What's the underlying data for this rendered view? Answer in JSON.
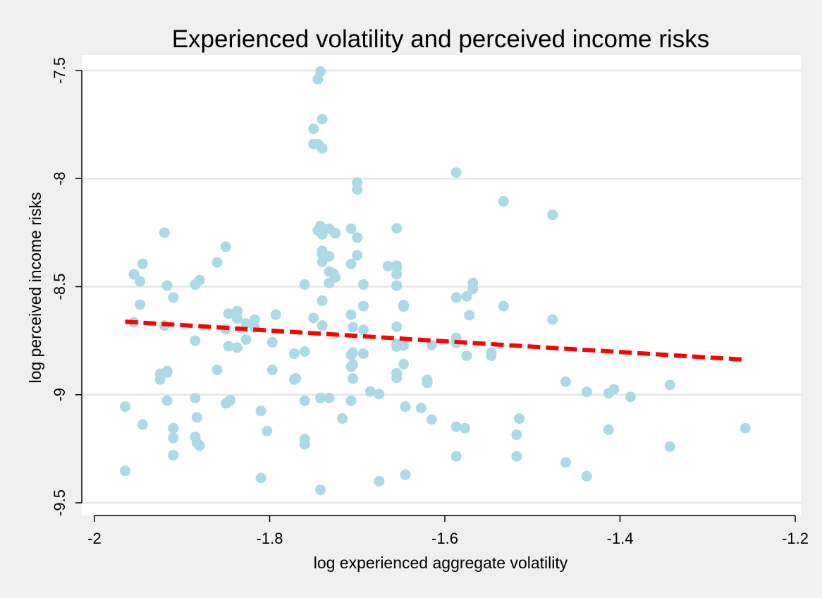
{
  "chart_data": {
    "type": "scatter",
    "title": "Experienced volatility and perceived income risks",
    "xlabel": "log experienced aggregate volatility",
    "ylabel": "log perceived income risks",
    "xlim": [
      -2.02,
      -1.19
    ],
    "ylim": [
      -9.55,
      -7.45
    ],
    "xticks": [
      -2,
      -1.8,
      -1.6,
      -1.4,
      -1.2
    ],
    "xtick_labels": [
      "-2",
      "-1.8",
      "-1.6",
      "-1.4",
      "-1.2"
    ],
    "yticks": [
      -7.5,
      -8,
      -8.5,
      -9,
      -9.5
    ],
    "ytick_labels": [
      "-7.5",
      "-8",
      "-8.5",
      "-9",
      "-9.5"
    ],
    "grid": "horizontal",
    "colors": {
      "points": "#add8e6",
      "fit_line": "#ff0000",
      "plot_background": "#ffffff",
      "page_background": "#f0f0f0"
    },
    "series": [
      {
        "kind": "scatter",
        "points": [
          [
            -1.965,
            -9.055
          ],
          [
            -1.965,
            -9.352
          ],
          [
            -1.955,
            -8.443
          ],
          [
            -1.955,
            -8.665
          ],
          [
            -1.948,
            -8.476
          ],
          [
            -1.948,
            -8.583
          ],
          [
            -1.945,
            -8.394
          ],
          [
            -1.945,
            -9.138
          ],
          [
            -1.925,
            -8.903
          ],
          [
            -1.925,
            -8.93
          ],
          [
            -1.92,
            -8.25
          ],
          [
            -1.92,
            -8.68
          ],
          [
            -1.917,
            -8.495
          ],
          [
            -1.917,
            -8.89
          ],
          [
            -1.917,
            -8.897
          ],
          [
            -1.917,
            -9.027
          ],
          [
            -1.91,
            -8.55
          ],
          [
            -1.91,
            -9.155
          ],
          [
            -1.91,
            -9.2
          ],
          [
            -1.91,
            -9.28
          ],
          [
            -1.885,
            -8.49
          ],
          [
            -1.885,
            -8.75
          ],
          [
            -1.885,
            -9.015
          ],
          [
            -1.885,
            -9.195
          ],
          [
            -1.883,
            -9.105
          ],
          [
            -1.883,
            -9.222
          ],
          [
            -1.88,
            -8.47
          ],
          [
            -1.88,
            -9.235
          ],
          [
            -1.86,
            -8.388
          ],
          [
            -1.86,
            -8.885
          ],
          [
            -1.85,
            -8.315
          ],
          [
            -1.85,
            -8.697
          ],
          [
            -1.85,
            -9.04
          ],
          [
            -1.847,
            -8.625
          ],
          [
            -1.847,
            -8.775
          ],
          [
            -1.845,
            -9.025
          ],
          [
            -1.837,
            -8.613
          ],
          [
            -1.837,
            -8.647
          ],
          [
            -1.837,
            -8.782
          ],
          [
            -1.827,
            -8.67
          ],
          [
            -1.827,
            -8.745
          ],
          [
            -1.817,
            -8.653
          ],
          [
            -1.817,
            -8.69
          ],
          [
            -1.81,
            -9.075
          ],
          [
            -1.81,
            -9.385
          ],
          [
            -1.803,
            -9.168
          ],
          [
            -1.797,
            -8.757
          ],
          [
            -1.797,
            -8.885
          ],
          [
            -1.793,
            -8.63
          ],
          [
            -1.772,
            -8.81
          ],
          [
            -1.772,
            -8.93
          ],
          [
            -1.77,
            -8.925
          ],
          [
            -1.76,
            -8.49
          ],
          [
            -1.76,
            -8.8
          ],
          [
            -1.76,
            -9.028
          ],
          [
            -1.76,
            -9.205
          ],
          [
            -1.76,
            -9.23
          ],
          [
            -1.75,
            -7.77
          ],
          [
            -1.75,
            -7.84
          ],
          [
            -1.75,
            -8.645
          ],
          [
            -1.745,
            -7.54
          ],
          [
            -1.745,
            -7.84
          ],
          [
            -1.745,
            -8.24
          ],
          [
            -1.742,
            -7.505
          ],
          [
            -1.742,
            -8.22
          ],
          [
            -1.742,
            -9.015
          ],
          [
            -1.742,
            -9.44
          ],
          [
            -1.74,
            -7.725
          ],
          [
            -1.74,
            -7.86
          ],
          [
            -1.74,
            -8.258
          ],
          [
            -1.74,
            -8.335
          ],
          [
            -1.74,
            -8.35
          ],
          [
            -1.74,
            -8.385
          ],
          [
            -1.74,
            -8.565
          ],
          [
            -1.74,
            -8.68
          ],
          [
            -1.732,
            -8.232
          ],
          [
            -1.732,
            -8.36
          ],
          [
            -1.732,
            -8.43
          ],
          [
            -1.732,
            -8.483
          ],
          [
            -1.732,
            -9.015
          ],
          [
            -1.727,
            -8.44
          ],
          [
            -1.725,
            -8.253
          ],
          [
            -1.725,
            -8.457
          ],
          [
            -1.717,
            -9.11
          ],
          [
            -1.707,
            -8.232
          ],
          [
            -1.707,
            -8.395
          ],
          [
            -1.707,
            -8.63
          ],
          [
            -1.707,
            -8.815
          ],
          [
            -1.707,
            -8.87
          ],
          [
            -1.707,
            -9.028
          ],
          [
            -1.705,
            -8.687
          ],
          [
            -1.705,
            -8.805
          ],
          [
            -1.705,
            -8.86
          ],
          [
            -1.705,
            -8.925
          ],
          [
            -1.7,
            -8.018
          ],
          [
            -1.7,
            -8.05
          ],
          [
            -1.7,
            -8.273
          ],
          [
            -1.7,
            -8.355
          ],
          [
            -1.693,
            -8.49
          ],
          [
            -1.693,
            -8.59
          ],
          [
            -1.693,
            -8.7
          ],
          [
            -1.693,
            -8.81
          ],
          [
            -1.685,
            -8.985
          ],
          [
            -1.675,
            -8.997
          ],
          [
            -1.675,
            -9.4
          ],
          [
            -1.665,
            -8.405
          ],
          [
            -1.655,
            -8.23
          ],
          [
            -1.655,
            -8.403
          ],
          [
            -1.655,
            -8.412
          ],
          [
            -1.655,
            -8.443
          ],
          [
            -1.655,
            -8.495
          ],
          [
            -1.655,
            -8.685
          ],
          [
            -1.655,
            -8.765
          ],
          [
            -1.655,
            -8.777
          ],
          [
            -1.655,
            -8.9
          ],
          [
            -1.655,
            -8.922
          ],
          [
            -1.647,
            -8.585
          ],
          [
            -1.647,
            -8.592
          ],
          [
            -1.647,
            -8.772
          ],
          [
            -1.647,
            -8.858
          ],
          [
            -1.645,
            -9.055
          ],
          [
            -1.645,
            -9.37
          ],
          [
            -1.627,
            -9.062
          ],
          [
            -1.62,
            -8.932
          ],
          [
            -1.62,
            -8.945
          ],
          [
            -1.615,
            -8.77
          ],
          [
            -1.615,
            -9.115
          ],
          [
            -1.587,
            -7.972
          ],
          [
            -1.587,
            -8.55
          ],
          [
            -1.587,
            -8.737
          ],
          [
            -1.587,
            -8.76
          ],
          [
            -1.587,
            -9.148
          ],
          [
            -1.587,
            -9.285
          ],
          [
            -1.577,
            -9.155
          ],
          [
            -1.575,
            -8.545
          ],
          [
            -1.575,
            -8.82
          ],
          [
            -1.572,
            -8.632
          ],
          [
            -1.568,
            -8.483
          ],
          [
            -1.568,
            -8.51
          ],
          [
            -1.547,
            -8.805
          ],
          [
            -1.547,
            -8.82
          ],
          [
            -1.533,
            -8.105
          ],
          [
            -1.533,
            -8.59
          ],
          [
            -1.518,
            -9.185
          ],
          [
            -1.518,
            -9.285
          ],
          [
            -1.515,
            -9.11
          ],
          [
            -1.477,
            -8.168
          ],
          [
            -1.477,
            -8.652
          ],
          [
            -1.462,
            -8.94
          ],
          [
            -1.462,
            -9.313
          ],
          [
            -1.438,
            -8.987
          ],
          [
            -1.438,
            -9.377
          ],
          [
            -1.413,
            -8.993
          ],
          [
            -1.413,
            -9.162
          ],
          [
            -1.407,
            -8.975
          ],
          [
            -1.388,
            -9.01
          ],
          [
            -1.343,
            -8.955
          ],
          [
            -1.343,
            -9.24
          ],
          [
            -1.257,
            -9.155
          ]
        ]
      },
      {
        "kind": "fit",
        "x": [
          -1.965,
          -1.257
        ],
        "y": [
          -8.662,
          -8.838
        ]
      }
    ]
  }
}
